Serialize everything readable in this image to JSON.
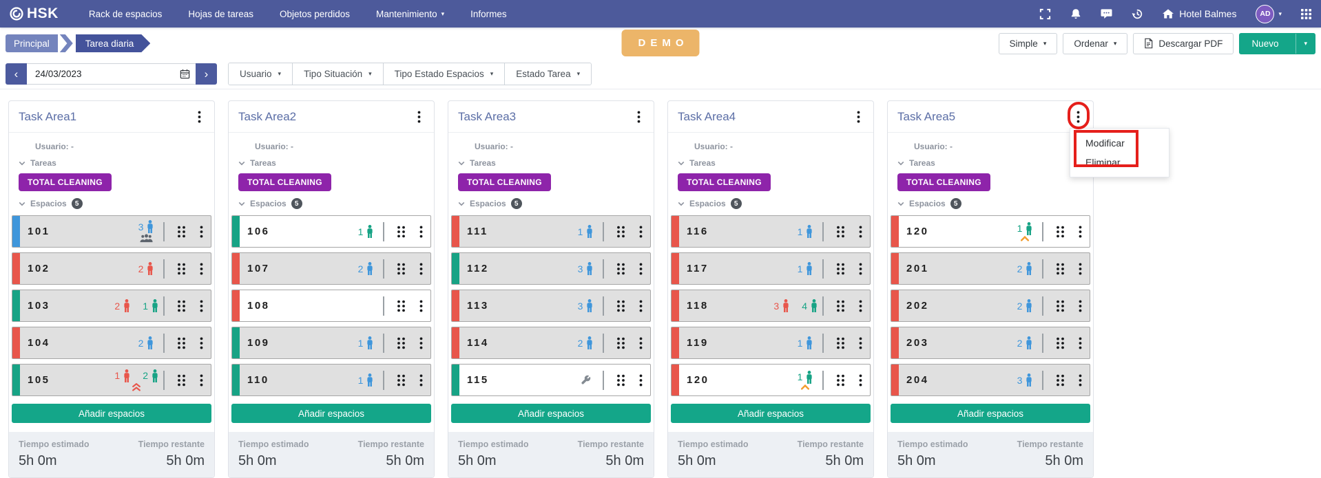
{
  "navbar": {
    "logo_text": "HSK",
    "menu": [
      {
        "label": "Rack de espacios",
        "caret": false
      },
      {
        "label": "Hojas de tareas",
        "caret": false
      },
      {
        "label": "Objetos perdidos",
        "caret": false
      },
      {
        "label": "Mantenimiento",
        "caret": true
      },
      {
        "label": "Informes",
        "caret": false
      }
    ],
    "hotel_name": "Hotel Balmes",
    "avatar_initials": "AD"
  },
  "breadcrumb": {
    "items": [
      "Principal",
      "Tarea diaria"
    ]
  },
  "demo_badge": "DEMO",
  "actions": {
    "simple": "Simple",
    "ordenar": "Ordenar",
    "descargar_pdf": "Descargar PDF",
    "nuevo": "Nuevo"
  },
  "filters": {
    "date": "24/03/2023",
    "dropdowns": [
      "Usuario",
      "Tipo Situación",
      "Tipo Estado Espacios",
      "Estado Tarea"
    ]
  },
  "card_common": {
    "usuario_label": "Usuario:",
    "usuario_value": "-",
    "tareas_label": "Tareas",
    "task_badge": "TOTAL CLEANING",
    "espacios_label": "Espacios",
    "espacios_count": "5",
    "add_spaces_label": "Añadir espacios",
    "tiempo_estimado_label": "Tiempo estimado",
    "tiempo_restante_label": "Tiempo restante",
    "tiempo_estimado_value": "5h 0m",
    "tiempo_restante_value": "5h 0m"
  },
  "cards": [
    {
      "title": "Task Area1",
      "rooms": [
        {
          "number": "101",
          "bar": "blue",
          "bg": "gray",
          "occupants": [
            {
              "count": "3",
              "color": "blue"
            }
          ],
          "extra": "group"
        },
        {
          "number": "102",
          "bar": "red",
          "bg": "gray",
          "occupants": [
            {
              "count": "2",
              "color": "red"
            }
          ],
          "extra": null
        },
        {
          "number": "103",
          "bar": "green",
          "bg": "gray",
          "occupants": [
            {
              "count": "2",
              "color": "red"
            },
            {
              "count": "1",
              "color": "green"
            }
          ],
          "extra": null
        },
        {
          "number": "104",
          "bar": "red",
          "bg": "gray",
          "occupants": [
            {
              "count": "2",
              "color": "blue"
            }
          ],
          "extra": null
        },
        {
          "number": "105",
          "bar": "green",
          "bg": "gray",
          "occupants": [
            {
              "count": "1",
              "color": "red"
            },
            {
              "count": "2",
              "color": "green"
            }
          ],
          "extra": "double-chevron-up"
        }
      ]
    },
    {
      "title": "Task Area2",
      "rooms": [
        {
          "number": "106",
          "bar": "green",
          "bg": "white",
          "occupants": [
            {
              "count": "1",
              "color": "green"
            }
          ],
          "extra": null
        },
        {
          "number": "107",
          "bar": "red",
          "bg": "gray",
          "occupants": [
            {
              "count": "2",
              "color": "blue"
            }
          ],
          "extra": null
        },
        {
          "number": "108",
          "bar": "red",
          "bg": "white",
          "occupants": [],
          "extra": null
        },
        {
          "number": "109",
          "bar": "green",
          "bg": "gray",
          "occupants": [
            {
              "count": "1",
              "color": "blue"
            }
          ],
          "extra": null
        },
        {
          "number": "110",
          "bar": "green",
          "bg": "gray",
          "occupants": [
            {
              "count": "1",
              "color": "blue"
            }
          ],
          "extra": null
        }
      ]
    },
    {
      "title": "Task Area3",
      "rooms": [
        {
          "number": "111",
          "bar": "red",
          "bg": "gray",
          "occupants": [
            {
              "count": "1",
              "color": "blue"
            }
          ],
          "extra": null
        },
        {
          "number": "112",
          "bar": "green",
          "bg": "gray",
          "occupants": [
            {
              "count": "3",
              "color": "blue"
            }
          ],
          "extra": null
        },
        {
          "number": "113",
          "bar": "red",
          "bg": "gray",
          "occupants": [
            {
              "count": "3",
              "color": "blue"
            }
          ],
          "extra": null
        },
        {
          "number": "114",
          "bar": "red",
          "bg": "gray",
          "occupants": [
            {
              "count": "2",
              "color": "blue"
            }
          ],
          "extra": null
        },
        {
          "number": "115",
          "bar": "green",
          "bg": "white",
          "occupants": [],
          "extra": "wrench"
        }
      ]
    },
    {
      "title": "Task Area4",
      "rooms": [
        {
          "number": "116",
          "bar": "red",
          "bg": "gray",
          "occupants": [
            {
              "count": "1",
              "color": "blue"
            }
          ],
          "extra": null
        },
        {
          "number": "117",
          "bar": "red",
          "bg": "gray",
          "occupants": [
            {
              "count": "1",
              "color": "blue"
            }
          ],
          "extra": null
        },
        {
          "number": "118",
          "bar": "red",
          "bg": "gray",
          "occupants": [
            {
              "count": "3",
              "color": "red"
            },
            {
              "count": "4",
              "color": "green"
            }
          ],
          "extra": null
        },
        {
          "number": "119",
          "bar": "red",
          "bg": "gray",
          "occupants": [
            {
              "count": "1",
              "color": "blue"
            }
          ],
          "extra": null
        },
        {
          "number": "120",
          "bar": "red",
          "bg": "white",
          "occupants": [
            {
              "count": "1",
              "color": "green"
            }
          ],
          "extra": "chevron-up"
        }
      ]
    },
    {
      "title": "Task Area5",
      "rooms": [
        {
          "number": "120",
          "bar": "red",
          "bg": "white",
          "occupants": [
            {
              "count": "1",
              "color": "green"
            }
          ],
          "extra": "chevron-up"
        },
        {
          "number": "201",
          "bar": "red",
          "bg": "gray",
          "occupants": [
            {
              "count": "2",
              "color": "blue"
            }
          ],
          "extra": null
        },
        {
          "number": "202",
          "bar": "red",
          "bg": "gray",
          "occupants": [
            {
              "count": "2",
              "color": "blue"
            }
          ],
          "extra": null
        },
        {
          "number": "203",
          "bar": "red",
          "bg": "gray",
          "occupants": [
            {
              "count": "2",
              "color": "blue"
            }
          ],
          "extra": null
        },
        {
          "number": "204",
          "bar": "red",
          "bg": "gray",
          "occupants": [
            {
              "count": "3",
              "color": "blue"
            }
          ],
          "extra": null
        }
      ]
    }
  ],
  "context_menu": {
    "opened_on_card": "Task Area5",
    "items": [
      "Modificar",
      "Eliminar"
    ]
  },
  "icons": {
    "hsk-logo-icon": "spiral-circle",
    "fullscreen-icon": "corner-brackets",
    "notifications-bell-icon": "bell",
    "chat-icon": "speech-bubble",
    "history-icon": "clock-arrow",
    "home-icon": "house",
    "avatar-caret-icon": "▾",
    "apps-grid-icon": "3x3-grid",
    "pdf-file-icon": "file-outline",
    "calendar-icon": "calendar",
    "prev-arrow-icon": "‹",
    "next-arrow-icon": "›",
    "caret-down-icon": "▾",
    "chevron-down-icon": "v",
    "kebab-menu-icon": "⋮",
    "drag-handle-icon": "6-dots",
    "person-icon": "person-silhouette",
    "group-icon": "people-group",
    "wrench-icon": "wrench",
    "chevron-up-icon": "orange-chevron-up",
    "double-chevron-up-icon": "red-double-chevron-up"
  },
  "colors": {
    "navbar_blue": "#4d5a9b",
    "breadcrumb_light": "#7484bd",
    "breadcrumb_dark": "#44539b",
    "demo_orange": "#ecb569",
    "accent_green": "#14a689",
    "badge_purple": "#8e24aa",
    "status_blue": "#3f96db",
    "status_red": "#e8564b",
    "status_green": "#17a385",
    "row_gray": "#e0e0e0",
    "annotation_red": "#e51f1b",
    "group_icon_gray": "#5d646d",
    "chevron_orange": "#f39c2c"
  }
}
